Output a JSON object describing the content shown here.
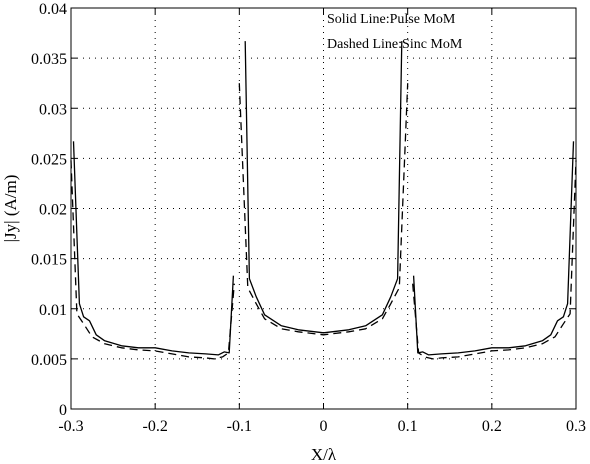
{
  "chart_data": {
    "type": "line",
    "xlabel": "X/λ",
    "ylabel": "|Jy| (A/m)",
    "xlim": [
      -0.3,
      0.3
    ],
    "ylim": [
      0,
      0.04
    ],
    "xticks": [
      -0.3,
      -0.2,
      -0.1,
      0,
      0.1,
      0.2,
      0.3
    ],
    "xtick_labels": [
      "-0.3",
      "-0.2",
      "-0.1",
      "0",
      "0.1",
      "0.2",
      "0.3"
    ],
    "yticks": [
      0,
      0.005,
      0.01,
      0.015,
      0.02,
      0.025,
      0.03,
      0.035,
      0.04
    ],
    "ytick_labels": [
      "0",
      "0.005",
      "0.01",
      "0.015",
      "0.02",
      "0.025",
      "0.03",
      "0.035",
      "0.04"
    ],
    "grid": true,
    "annotations": [
      "Solid Line:Pulse MoM",
      "Dashed Line:Sinc MoM"
    ],
    "series": [
      {
        "style": "solid",
        "segments": [
          [
            [
              -0.297,
              0.0267
            ],
            [
              -0.29,
              0.0105
            ],
            [
              -0.285,
              0.0092
            ],
            [
              -0.278,
              0.0088
            ],
            [
              -0.27,
              0.0074
            ],
            [
              -0.26,
              0.0068
            ],
            [
              -0.24,
              0.0063
            ],
            [
              -0.22,
              0.0061
            ],
            [
              -0.2,
              0.0061
            ],
            [
              -0.18,
              0.0058
            ],
            [
              -0.16,
              0.0056
            ],
            [
              -0.14,
              0.0055
            ],
            [
              -0.125,
              0.0054
            ],
            [
              -0.118,
              0.0057
            ],
            [
              -0.112,
              0.0056
            ],
            [
              -0.107,
              0.0133
            ]
          ],
          [
            [
              -0.093,
              0.0367
            ],
            [
              -0.088,
              0.013
            ],
            [
              -0.08,
              0.0112
            ],
            [
              -0.07,
              0.0094
            ],
            [
              -0.05,
              0.0083
            ],
            [
              -0.03,
              0.0079
            ],
            [
              0,
              0.0076
            ],
            [
              0.03,
              0.0079
            ],
            [
              0.05,
              0.0083
            ],
            [
              0.07,
              0.0094
            ],
            [
              0.08,
              0.0112
            ],
            [
              0.088,
              0.013
            ],
            [
              0.093,
              0.0367
            ]
          ],
          [
            [
              0.107,
              0.0133
            ],
            [
              0.112,
              0.0056
            ],
            [
              0.118,
              0.0057
            ],
            [
              0.125,
              0.0054
            ],
            [
              0.14,
              0.0055
            ],
            [
              0.16,
              0.0056
            ],
            [
              0.18,
              0.0058
            ],
            [
              0.2,
              0.0061
            ],
            [
              0.22,
              0.0061
            ],
            [
              0.24,
              0.0063
            ],
            [
              0.26,
              0.0068
            ],
            [
              0.27,
              0.0074
            ],
            [
              0.278,
              0.0088
            ],
            [
              0.285,
              0.0092
            ],
            [
              0.29,
              0.0105
            ],
            [
              0.297,
              0.0267
            ]
          ]
        ]
      },
      {
        "style": "dashed",
        "segments": [
          [
            [
              -0.3,
              0.0248
            ],
            [
              -0.293,
              0.0095
            ],
            [
              -0.285,
              0.0085
            ],
            [
              -0.275,
              0.0072
            ],
            [
              -0.26,
              0.0065
            ],
            [
              -0.24,
              0.0061
            ],
            [
              -0.22,
              0.0059
            ],
            [
              -0.2,
              0.0058
            ],
            [
              -0.18,
              0.0055
            ],
            [
              -0.16,
              0.0052
            ],
            [
              -0.14,
              0.0051
            ],
            [
              -0.13,
              0.005
            ],
            [
              -0.12,
              0.0052
            ],
            [
              -0.113,
              0.0056
            ],
            [
              -0.106,
              0.0125
            ]
          ],
          [
            [
              -0.1,
              0.0325
            ],
            [
              -0.09,
              0.0121
            ],
            [
              -0.08,
              0.0105
            ],
            [
              -0.07,
              0.009
            ],
            [
              -0.05,
              0.008
            ],
            [
              -0.03,
              0.0077
            ],
            [
              0,
              0.0074
            ],
            [
              0.03,
              0.0077
            ],
            [
              0.05,
              0.008
            ],
            [
              0.07,
              0.009
            ],
            [
              0.08,
              0.0105
            ],
            [
              0.09,
              0.0121
            ],
            [
              0.1,
              0.0325
            ]
          ],
          [
            [
              0.106,
              0.0125
            ],
            [
              0.113,
              0.0056
            ],
            [
              0.12,
              0.0052
            ],
            [
              0.13,
              0.005
            ],
            [
              0.14,
              0.0051
            ],
            [
              0.16,
              0.0052
            ],
            [
              0.18,
              0.0055
            ],
            [
              0.2,
              0.0058
            ],
            [
              0.22,
              0.0059
            ],
            [
              0.24,
              0.0061
            ],
            [
              0.26,
              0.0065
            ],
            [
              0.275,
              0.0072
            ],
            [
              0.285,
              0.0085
            ],
            [
              0.293,
              0.0095
            ],
            [
              0.3,
              0.0248
            ]
          ]
        ]
      }
    ]
  }
}
